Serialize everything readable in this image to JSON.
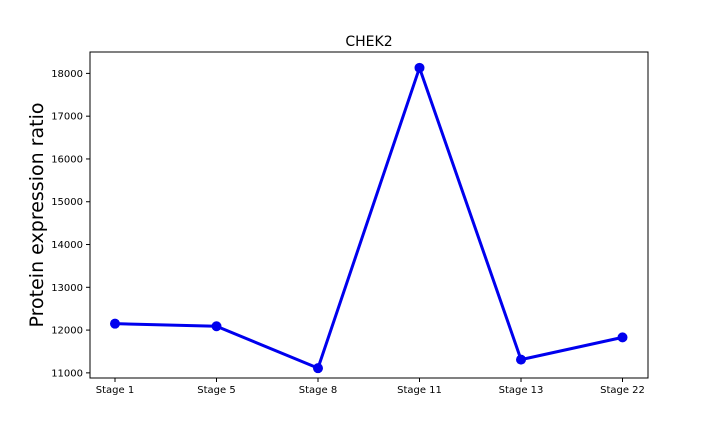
{
  "chart_data": {
    "type": "line",
    "title": "CHEK2",
    "xlabel": "",
    "ylabel": "Protein expression ratio",
    "categories": [
      "Stage 1",
      "Stage 5",
      "Stage 8",
      "Stage 11",
      "Stage 13",
      "Stage 22"
    ],
    "series": [
      {
        "values": [
          12150,
          12090,
          11110,
          18130,
          11310,
          11830
        ]
      }
    ],
    "ylim": [
      10880,
      18500
    ],
    "yticks": [
      11000,
      12000,
      13000,
      14000,
      15000,
      16000,
      17000,
      18000
    ],
    "grid": false,
    "line_color": "#0000ee"
  }
}
